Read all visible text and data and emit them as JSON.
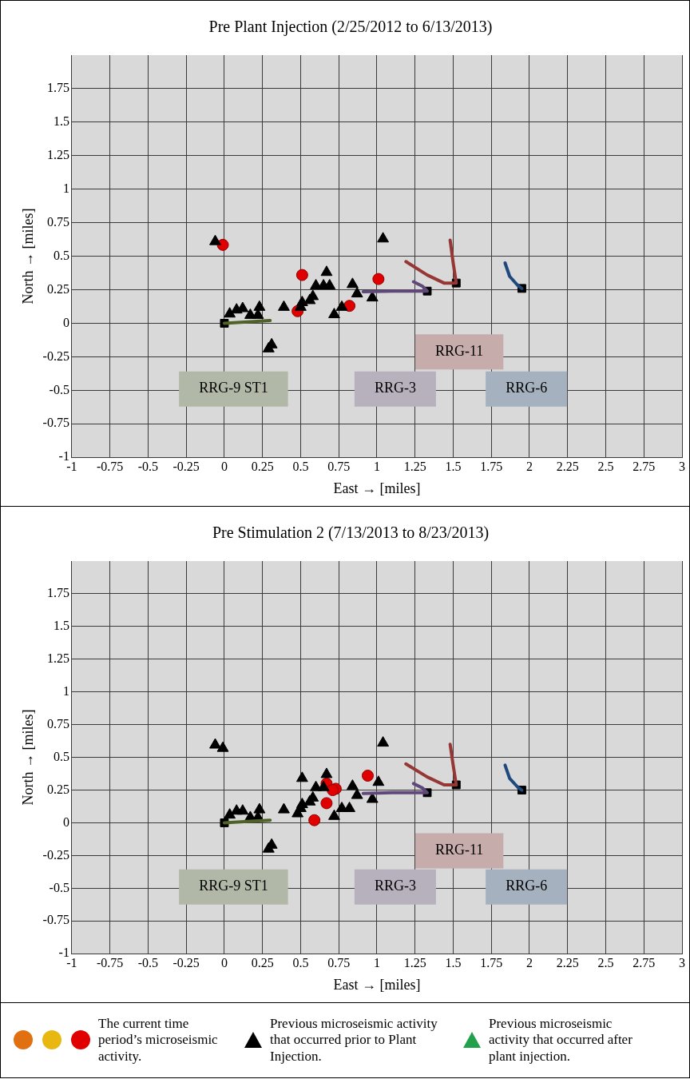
{
  "chart_data": [
    {
      "type": "scatter",
      "title": "Pre Plant Injection (2/25/2012 to 6/13/2013)",
      "xlabel": "East → [miles]",
      "ylabel": "North → [miles]",
      "xlim": [
        -1,
        3
      ],
      "xticks": [
        -1,
        -0.75,
        -0.5,
        -0.25,
        0,
        0.25,
        0.5,
        0.75,
        1,
        1.25,
        1.5,
        1.75,
        2,
        2.25,
        2.5,
        2.75,
        3
      ],
      "ylim": [
        -1,
        2
      ],
      "yticks": [
        -1,
        -0.75,
        -0.5,
        -0.25,
        0,
        0.25,
        0.5,
        0.75,
        1,
        1.25,
        1.5,
        1.75
      ],
      "grid": true,
      "legend": false,
      "series": [
        {
          "type": "line",
          "marker": "none",
          "color": "#4f6228",
          "x": [
            0,
            0.15,
            0.3
          ],
          "values": [
            0,
            0.01,
            0.02
          ]
        },
        {
          "type": "line",
          "marker": "none",
          "color": "#60497a",
          "x": [
            0.91,
            1.1,
            1.3,
            1.33,
            1.3,
            1.24
          ],
          "values": [
            0.235,
            0.24,
            0.24,
            0.24,
            0.275,
            0.31
          ]
        },
        {
          "type": "line",
          "marker": "none",
          "color": "#953735",
          "x": [
            1.48,
            1.5,
            1.52,
            1.44,
            1.33,
            1.19
          ],
          "values": [
            0.62,
            0.45,
            0.3,
            0.3,
            0.36,
            0.46
          ]
        },
        {
          "type": "line",
          "marker": "none",
          "color": "#1f497d",
          "x": [
            1.84,
            1.87,
            1.925,
            1.95
          ],
          "values": [
            0.45,
            0.35,
            0.28,
            0.26
          ]
        },
        {
          "marker": "square",
          "color": "#000000",
          "x": [
            0,
            1.33,
            1.52,
            1.95
          ],
          "values": [
            0,
            0.24,
            0.3,
            0.26
          ]
        },
        {
          "marker": "triangle",
          "color": "#000000",
          "x": [
            -0.06,
            1.04,
            0.67,
            0.6,
            0.65,
            0.69,
            0.84,
            0.87,
            0.97,
            0.58,
            0.56,
            0.51,
            0.5,
            0.39,
            0.77,
            0.72,
            0.23,
            0.12,
            0.08,
            0.035,
            0.17,
            0.22,
            0.31,
            0.29
          ],
          "values": [
            0.61,
            0.63,
            0.38,
            0.28,
            0.28,
            0.28,
            0.29,
            0.22,
            0.19,
            0.2,
            0.17,
            0.155,
            0.12,
            0.12,
            0.12,
            0.065,
            0.12,
            0.11,
            0.1,
            0.07,
            0.06,
            0.06,
            -0.16,
            -0.19
          ]
        },
        {
          "marker": "circle",
          "color": "#e00000",
          "x": [
            -0.01,
            0.51,
            1.01,
            0.82,
            0.48
          ],
          "values": [
            0.585,
            0.36,
            0.33,
            0.13,
            0.09
          ]
        }
      ],
      "annotations": [
        "RRG-9 ST1",
        "RRG-3",
        "RRG-11",
        "RRG-6"
      ]
    },
    {
      "type": "scatter",
      "title": "Pre Stimulation 2 (7/13/2013 to 8/23/2013)",
      "xlabel": "East → [miles]",
      "ylabel": "North → [miles]",
      "xlim": [
        -1,
        3
      ],
      "xticks": [
        -1,
        -0.75,
        -0.5,
        -0.25,
        0,
        0.25,
        0.5,
        0.75,
        1,
        1.25,
        1.5,
        1.75,
        2,
        2.25,
        2.5,
        2.75,
        3
      ],
      "ylim": [
        -1,
        2
      ],
      "yticks": [
        -1,
        -0.75,
        -0.5,
        -0.25,
        0,
        0.25,
        0.5,
        0.75,
        1,
        1.25,
        1.5,
        1.75
      ],
      "grid": true,
      "legend": "bottom",
      "series": [
        {
          "type": "line",
          "marker": "none",
          "color": "#4f6228",
          "x": [
            0,
            0.15,
            0.3
          ],
          "values": [
            0,
            0.01,
            0.02
          ]
        },
        {
          "type": "line",
          "marker": "none",
          "color": "#60497a",
          "x": [
            0.91,
            1.1,
            1.3,
            1.33,
            1.3,
            1.24
          ],
          "values": [
            0.225,
            0.23,
            0.23,
            0.23,
            0.265,
            0.3
          ]
        },
        {
          "type": "line",
          "marker": "none",
          "color": "#953735",
          "x": [
            1.48,
            1.5,
            1.52,
            1.44,
            1.33,
            1.19
          ],
          "values": [
            0.6,
            0.44,
            0.29,
            0.29,
            0.35,
            0.45
          ]
        },
        {
          "type": "line",
          "marker": "none",
          "color": "#1f497d",
          "x": [
            1.84,
            1.87,
            1.925,
            1.95
          ],
          "values": [
            0.44,
            0.34,
            0.27,
            0.25
          ]
        },
        {
          "marker": "square",
          "color": "#000000",
          "x": [
            0,
            1.33,
            1.52,
            1.95
          ],
          "values": [
            0,
            0.23,
            0.29,
            0.25
          ]
        },
        {
          "name": "Previous microseismic activity that occurred prior to Plant Injection.",
          "marker": "triangle",
          "color": "#000000",
          "x": [
            -0.06,
            -0.01,
            1.04,
            0.51,
            0.67,
            0.6,
            0.65,
            0.84,
            1.01,
            0.87,
            0.97,
            0.58,
            0.56,
            0.51,
            0.5,
            0.48,
            0.39,
            0.77,
            0.82,
            0.72,
            0.23,
            0.12,
            0.08,
            0.035,
            0.17,
            0.22,
            0.31,
            0.29
          ],
          "values": [
            0.595,
            0.57,
            0.61,
            0.34,
            0.37,
            0.27,
            0.27,
            0.28,
            0.31,
            0.21,
            0.18,
            0.19,
            0.16,
            0.14,
            0.11,
            0.07,
            0.1,
            0.11,
            0.11,
            0.05,
            0.1,
            0.09,
            0.09,
            0.06,
            0.04,
            0.04,
            -0.17,
            -0.2
          ]
        },
        {
          "name": "The current time period’s microseismic activity.",
          "marker": "circle",
          "color": "#e00000",
          "x": [
            0.94,
            0.67,
            0.73,
            0.71,
            0.67,
            0.59
          ],
          "values": [
            0.36,
            0.3,
            0.26,
            0.25,
            0.15,
            0.02
          ]
        },
        {
          "name": "Previous microseismic activity that occurred after plant injection.",
          "marker": "triangle",
          "color": "#22a04a"
        }
      ],
      "annotations": [
        "RRG-9 ST1",
        "RRG-3",
        "RRG-11",
        "RRG-6"
      ]
    }
  ]
}
